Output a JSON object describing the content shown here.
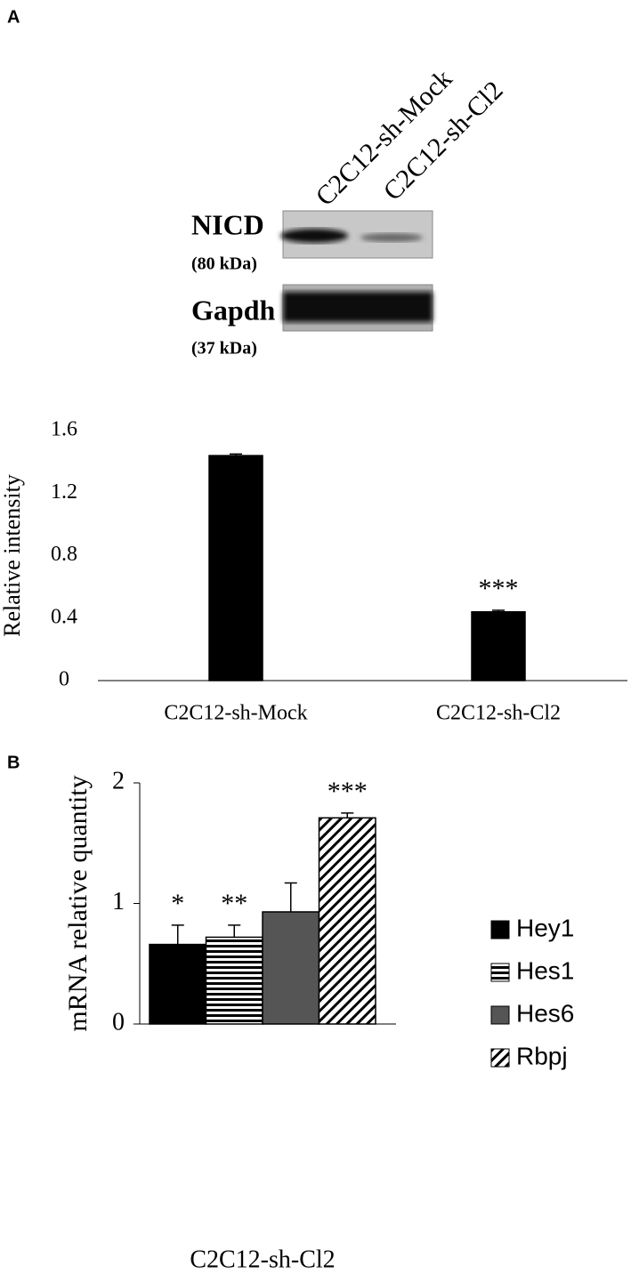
{
  "panel_labels": [
    "A",
    "B"
  ],
  "blot": {
    "lanes": [
      "C2C12-sh-Mock",
      "C2C12-sh-Cl2"
    ],
    "rows": [
      {
        "name": "NICD",
        "size": "(80 kDa)"
      },
      {
        "name": "Gapdh",
        "size": "(37 kDa)"
      }
    ]
  },
  "chart_data": [
    {
      "type": "bar",
      "ylabel": "Relative intensity",
      "categories": [
        "C2C12-sh-Mock",
        "C2C12-sh-Cl2"
      ],
      "values": [
        1.44,
        0.44
      ],
      "errors": [
        0.01,
        0.01
      ],
      "significance": [
        null,
        "***"
      ],
      "color": "#000000",
      "ylim": [
        0,
        1.6
      ],
      "yticks": [
        0,
        0.4,
        0.8,
        1.2,
        1.6
      ]
    },
    {
      "type": "grouped-bar",
      "ylabel": "mRNA relative quantity",
      "categories": [
        "C2C12-sh-Cl2"
      ],
      "series": [
        {
          "name": "Hey1",
          "color": "#000000",
          "pattern": "solid",
          "values": [
            0.66
          ],
          "errors": [
            0.16
          ],
          "significance": [
            "*"
          ]
        },
        {
          "name": "Hes1",
          "color": "#000000",
          "pattern": "horizontal-stripes",
          "values": [
            0.72
          ],
          "errors": [
            0.1
          ],
          "significance": [
            "**"
          ]
        },
        {
          "name": "Hes6",
          "color": "#555555",
          "pattern": "solid",
          "values": [
            0.93
          ],
          "errors": [
            0.24
          ],
          "significance": [
            null
          ]
        },
        {
          "name": "Rbpj",
          "color": "#000000",
          "pattern": "diagonal-hatch",
          "values": [
            1.71
          ],
          "errors": [
            0.04
          ],
          "significance": [
            "***"
          ]
        }
      ],
      "ylim": [
        0,
        2
      ],
      "yticks": [
        0,
        1,
        2
      ],
      "legend": "right"
    }
  ]
}
